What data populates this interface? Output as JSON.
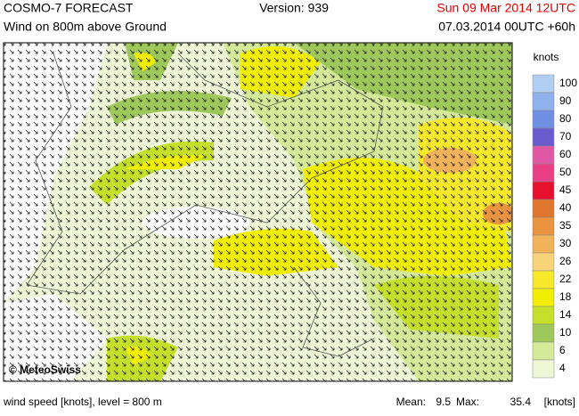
{
  "header": {
    "title": "COSMO-7 FORECAST",
    "version": "Version: 939",
    "valid": "Sun 09 Mar 2014 12UTC",
    "subtitle": "Wind on 800m above Ground",
    "run": "07.03.2014 00UTC +60h"
  },
  "legend": {
    "title": "knots",
    "entries": [
      {
        "label": 100,
        "color": "#b0cdf2"
      },
      {
        "label": 90,
        "color": "#8fb2ee"
      },
      {
        "label": 80,
        "color": "#6f8fe2"
      },
      {
        "label": 70,
        "color": "#6a5bcf"
      },
      {
        "label": 60,
        "color": "#e057a6"
      },
      {
        "label": 50,
        "color": "#ea3f86"
      },
      {
        "label": 45,
        "color": "#e6112c"
      },
      {
        "label": 40,
        "color": "#e0762e"
      },
      {
        "label": 35,
        "color": "#ea9440"
      },
      {
        "label": 30,
        "color": "#f2b25a"
      },
      {
        "label": 26,
        "color": "#f8d478"
      },
      {
        "label": 22,
        "color": "#f8e82a"
      },
      {
        "label": 18,
        "color": "#f2ee00"
      },
      {
        "label": 14,
        "color": "#c4e02a"
      },
      {
        "label": 10,
        "color": "#9ec85a"
      },
      {
        "label": 6,
        "color": "#d4ea98"
      },
      {
        "label": 4,
        "color": "#eef6d6"
      }
    ]
  },
  "watermark": "© MeteoSwiss",
  "footer": {
    "left": "wind speed [knots], level = 800 m",
    "mean_label": "Mean:",
    "mean": 9.5,
    "max_label": "Max:",
    "max": 35.4,
    "unit": "[knots]"
  }
}
